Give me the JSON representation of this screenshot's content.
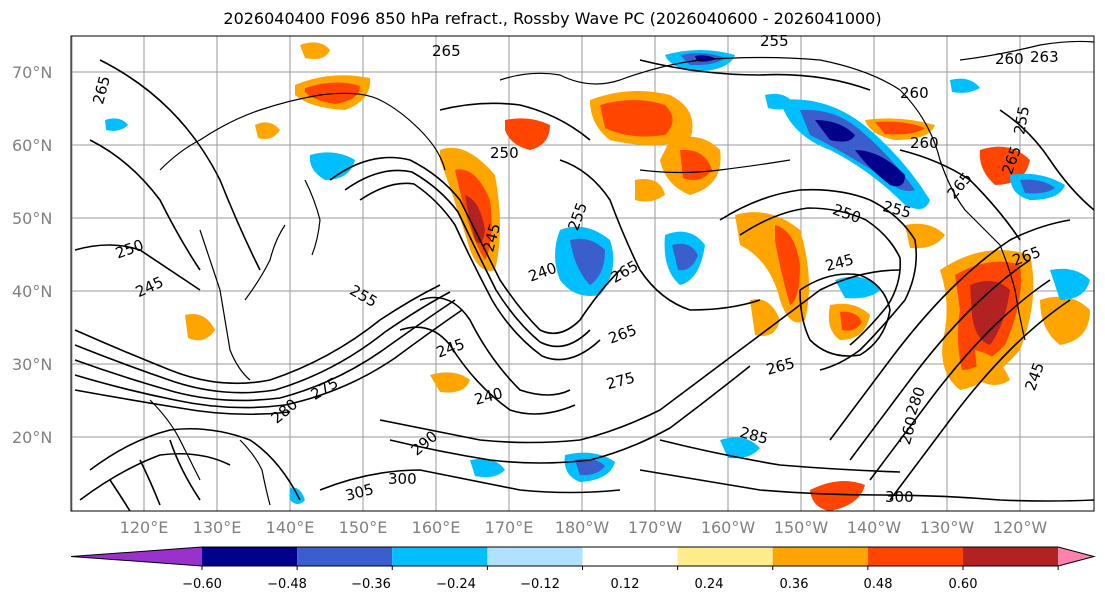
{
  "title": "2026040400 F096 850 hPa refract., Rossby Wave PC (2026040600 - 2026041000)",
  "lat_labels": [
    "70°N",
    "60°N",
    "50°N",
    "40°N",
    "30°N",
    "20°N"
  ],
  "lon_labels": [
    "120°E",
    "130°E",
    "140°E",
    "150°E",
    "160°E",
    "170°E",
    "180°W",
    "170°W",
    "160°W",
    "150°W",
    "140°W",
    "130°W",
    "120°W"
  ],
  "colorbar": {
    "colors": [
      "#9932cc",
      "#00008b",
      "#3a5fcd",
      "#00bfff",
      "#b0e2ff",
      "#ffffff",
      "#ffec8b",
      "#ffa500",
      "#ff4500",
      "#b22222",
      "#ff82ab"
    ],
    "ticks": [
      "−0.60",
      "−0.48",
      "−0.36",
      "−0.24",
      "−0.12",
      "0.12",
      "0.24",
      "0.36",
      "0.48",
      "0.60"
    ]
  },
  "contour_labels": [
    "265",
    "265",
    "255",
    "260",
    "263",
    "260",
    "260",
    "255",
    "265",
    "265",
    "250",
    "255",
    "250",
    "245",
    "255",
    "265",
    "240",
    "255",
    "245",
    "250",
    "265",
    "245",
    "265",
    "275",
    "245",
    "240",
    "275",
    "280",
    "265",
    "260",
    "280",
    "290",
    "285",
    "300",
    "305",
    "300",
    "245"
  ]
}
